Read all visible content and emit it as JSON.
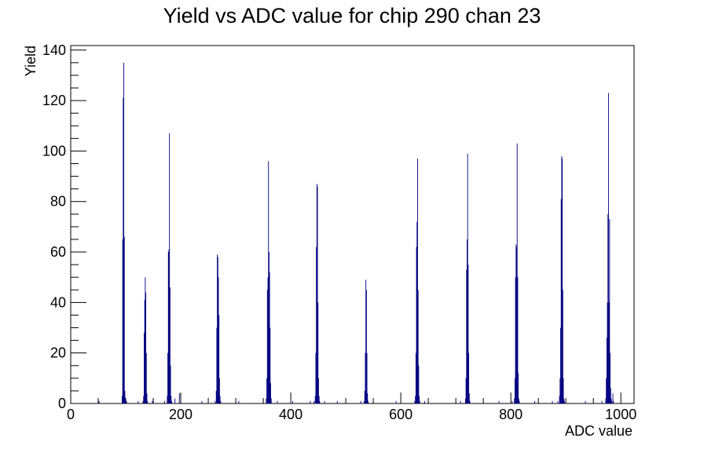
{
  "chart_data": {
    "type": "bar",
    "title": "Yield vs ADC value for chip 290 chan 23",
    "xlabel": "ADC value",
    "ylabel": "Yield",
    "xlim": [
      0,
      1024
    ],
    "ylim": [
      0,
      141.8
    ],
    "x_ticks": [
      0,
      200,
      400,
      600,
      800,
      1000
    ],
    "y_ticks": [
      0,
      20,
      40,
      60,
      80,
      100,
      120,
      140
    ],
    "grid": false,
    "line_color": "#000080",
    "series": [
      {
        "values": [
          {
            "x": 51,
            "y": 1
          },
          {
            "x": 93,
            "y": 3
          },
          {
            "x": 94,
            "y": 65
          },
          {
            "x": 95,
            "y": 121
          },
          {
            "x": 96,
            "y": 135
          },
          {
            "x": 97,
            "y": 66
          },
          {
            "x": 98,
            "y": 5
          },
          {
            "x": 99,
            "y": 2
          },
          {
            "x": 101,
            "y": 1
          },
          {
            "x": 122,
            "y": 1
          },
          {
            "x": 131,
            "y": 1
          },
          {
            "x": 132,
            "y": 3
          },
          {
            "x": 133,
            "y": 28
          },
          {
            "x": 134,
            "y": 41
          },
          {
            "x": 135,
            "y": 50
          },
          {
            "x": 136,
            "y": 44
          },
          {
            "x": 137,
            "y": 20
          },
          {
            "x": 138,
            "y": 4
          },
          {
            "x": 139,
            "y": 1
          },
          {
            "x": 148,
            "y": 1
          },
          {
            "x": 170,
            "y": 1
          },
          {
            "x": 175,
            "y": 3
          },
          {
            "x": 176,
            "y": 20
          },
          {
            "x": 177,
            "y": 60
          },
          {
            "x": 178,
            "y": 61
          },
          {
            "x": 179,
            "y": 107
          },
          {
            "x": 180,
            "y": 46
          },
          {
            "x": 181,
            "y": 15
          },
          {
            "x": 182,
            "y": 3
          },
          {
            "x": 183,
            "y": 1
          },
          {
            "x": 189,
            "y": 2
          },
          {
            "x": 197,
            "y": 4
          },
          {
            "x": 238,
            "y": 1
          },
          {
            "x": 262,
            "y": 1
          },
          {
            "x": 264,
            "y": 5
          },
          {
            "x": 265,
            "y": 30
          },
          {
            "x": 266,
            "y": 59
          },
          {
            "x": 267,
            "y": 58
          },
          {
            "x": 268,
            "y": 50
          },
          {
            "x": 269,
            "y": 35
          },
          {
            "x": 270,
            "y": 10
          },
          {
            "x": 271,
            "y": 3
          },
          {
            "x": 272,
            "y": 1
          },
          {
            "x": 305,
            "y": 1
          },
          {
            "x": 355,
            "y": 2
          },
          {
            "x": 356,
            "y": 10
          },
          {
            "x": 357,
            "y": 45
          },
          {
            "x": 358,
            "y": 50
          },
          {
            "x": 359,
            "y": 96
          },
          {
            "x": 360,
            "y": 60
          },
          {
            "x": 361,
            "y": 52
          },
          {
            "x": 362,
            "y": 30
          },
          {
            "x": 363,
            "y": 8
          },
          {
            "x": 364,
            "y": 2
          },
          {
            "x": 375,
            "y": 1
          },
          {
            "x": 403,
            "y": 1
          },
          {
            "x": 435,
            "y": 1
          },
          {
            "x": 442,
            "y": 1
          },
          {
            "x": 444,
            "y": 3
          },
          {
            "x": 445,
            "y": 20
          },
          {
            "x": 446,
            "y": 62
          },
          {
            "x": 447,
            "y": 87
          },
          {
            "x": 448,
            "y": 86
          },
          {
            "x": 449,
            "y": 40
          },
          {
            "x": 450,
            "y": 10
          },
          {
            "x": 451,
            "y": 3
          },
          {
            "x": 452,
            "y": 1
          },
          {
            "x": 461,
            "y": 1
          },
          {
            "x": 484,
            "y": 1
          },
          {
            "x": 527,
            "y": 1
          },
          {
            "x": 533,
            "y": 1
          },
          {
            "x": 534,
            "y": 5
          },
          {
            "x": 535,
            "y": 20
          },
          {
            "x": 536,
            "y": 49
          },
          {
            "x": 537,
            "y": 45
          },
          {
            "x": 538,
            "y": 20
          },
          {
            "x": 539,
            "y": 4
          },
          {
            "x": 540,
            "y": 1
          },
          {
            "x": 591,
            "y": 1
          },
          {
            "x": 625,
            "y": 1
          },
          {
            "x": 626,
            "y": 3
          },
          {
            "x": 627,
            "y": 20
          },
          {
            "x": 628,
            "y": 62
          },
          {
            "x": 629,
            "y": 72
          },
          {
            "x": 630,
            "y": 97
          },
          {
            "x": 631,
            "y": 45
          },
          {
            "x": 632,
            "y": 15
          },
          {
            "x": 633,
            "y": 3
          },
          {
            "x": 634,
            "y": 1
          },
          {
            "x": 643,
            "y": 1
          },
          {
            "x": 708,
            "y": 1
          },
          {
            "x": 717,
            "y": 2
          },
          {
            "x": 718,
            "y": 10
          },
          {
            "x": 719,
            "y": 53
          },
          {
            "x": 720,
            "y": 65
          },
          {
            "x": 721,
            "y": 99
          },
          {
            "x": 722,
            "y": 55
          },
          {
            "x": 723,
            "y": 20
          },
          {
            "x": 724,
            "y": 4
          },
          {
            "x": 725,
            "y": 1
          },
          {
            "x": 778,
            "y": 1
          },
          {
            "x": 802,
            "y": 1
          },
          {
            "x": 806,
            "y": 2
          },
          {
            "x": 807,
            "y": 10
          },
          {
            "x": 808,
            "y": 50
          },
          {
            "x": 809,
            "y": 63
          },
          {
            "x": 810,
            "y": 62
          },
          {
            "x": 811,
            "y": 103
          },
          {
            "x": 812,
            "y": 50
          },
          {
            "x": 813,
            "y": 12
          },
          {
            "x": 814,
            "y": 2
          },
          {
            "x": 815,
            "y": 1
          },
          {
            "x": 843,
            "y": 1
          },
          {
            "x": 875,
            "y": 1
          },
          {
            "x": 885,
            "y": 1
          },
          {
            "x": 888,
            "y": 3
          },
          {
            "x": 889,
            "y": 10
          },
          {
            "x": 890,
            "y": 30
          },
          {
            "x": 891,
            "y": 81
          },
          {
            "x": 892,
            "y": 98
          },
          {
            "x": 893,
            "y": 97
          },
          {
            "x": 894,
            "y": 45
          },
          {
            "x": 895,
            "y": 10
          },
          {
            "x": 896,
            "y": 2
          },
          {
            "x": 897,
            "y": 1
          },
          {
            "x": 935,
            "y": 1
          },
          {
            "x": 965,
            "y": 1
          },
          {
            "x": 972,
            "y": 2
          },
          {
            "x": 973,
            "y": 10
          },
          {
            "x": 974,
            "y": 26
          },
          {
            "x": 975,
            "y": 40
          },
          {
            "x": 976,
            "y": 75
          },
          {
            "x": 977,
            "y": 123
          },
          {
            "x": 978,
            "y": 40
          },
          {
            "x": 979,
            "y": 73
          },
          {
            "x": 980,
            "y": 20
          },
          {
            "x": 981,
            "y": 6
          },
          {
            "x": 982,
            "y": 2
          },
          {
            "x": 983,
            "y": 1
          },
          {
            "x": 985,
            "y": 4
          },
          {
            "x": 986,
            "y": 1
          }
        ]
      }
    ]
  }
}
